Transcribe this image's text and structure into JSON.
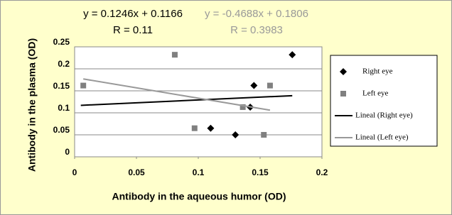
{
  "chart_data": {
    "type": "scatter",
    "x_label": "Antibody in the aqueous humor (OD)",
    "y_label": "Antibody in the plasma (OD)",
    "xlim": [
      0,
      0.2
    ],
    "xticks": [
      0,
      0.05,
      0.1,
      0.15,
      0.2
    ],
    "ylim": [
      0,
      0.25
    ],
    "yticks": [
      0,
      0.05,
      0.1,
      0.15,
      0.2,
      0.25
    ],
    "grid": true,
    "annotations": [
      {
        "text": "y = 0.1246x + 0.1166",
        "color": "#000000"
      },
      {
        "text": "R = 0.11",
        "color": "#000000"
      },
      {
        "text": "y = -0.4688x + 0.1806",
        "color": "#999999"
      },
      {
        "text": "R = 0.3983",
        "color": "#999999"
      }
    ],
    "series": [
      {
        "name": "Right eye",
        "color": "#000000",
        "marker": "diamond",
        "x": [
          0.176,
          0.145,
          0.142,
          0.11,
          0.13
        ],
        "values": [
          0.232,
          0.162,
          0.113,
          0.065,
          0.05
        ]
      },
      {
        "name": "Left eye",
        "color": "#808080",
        "marker": "square",
        "x": [
          0.007,
          0.081,
          0.097,
          0.136,
          0.158,
          0.153
        ],
        "values": [
          0.162,
          0.232,
          0.065,
          0.113,
          0.162,
          0.05
        ]
      },
      {
        "name": "Lineal (Right eye)",
        "color": "#000000",
        "marker": "line",
        "x": [
          0.005,
          0.176
        ],
        "values": [
          0.117,
          0.139
        ]
      },
      {
        "name": "Lineal (Left eye)",
        "color": "#999999",
        "marker": "line",
        "x": [
          0.007,
          0.158
        ],
        "values": [
          0.177,
          0.106
        ]
      }
    ]
  }
}
